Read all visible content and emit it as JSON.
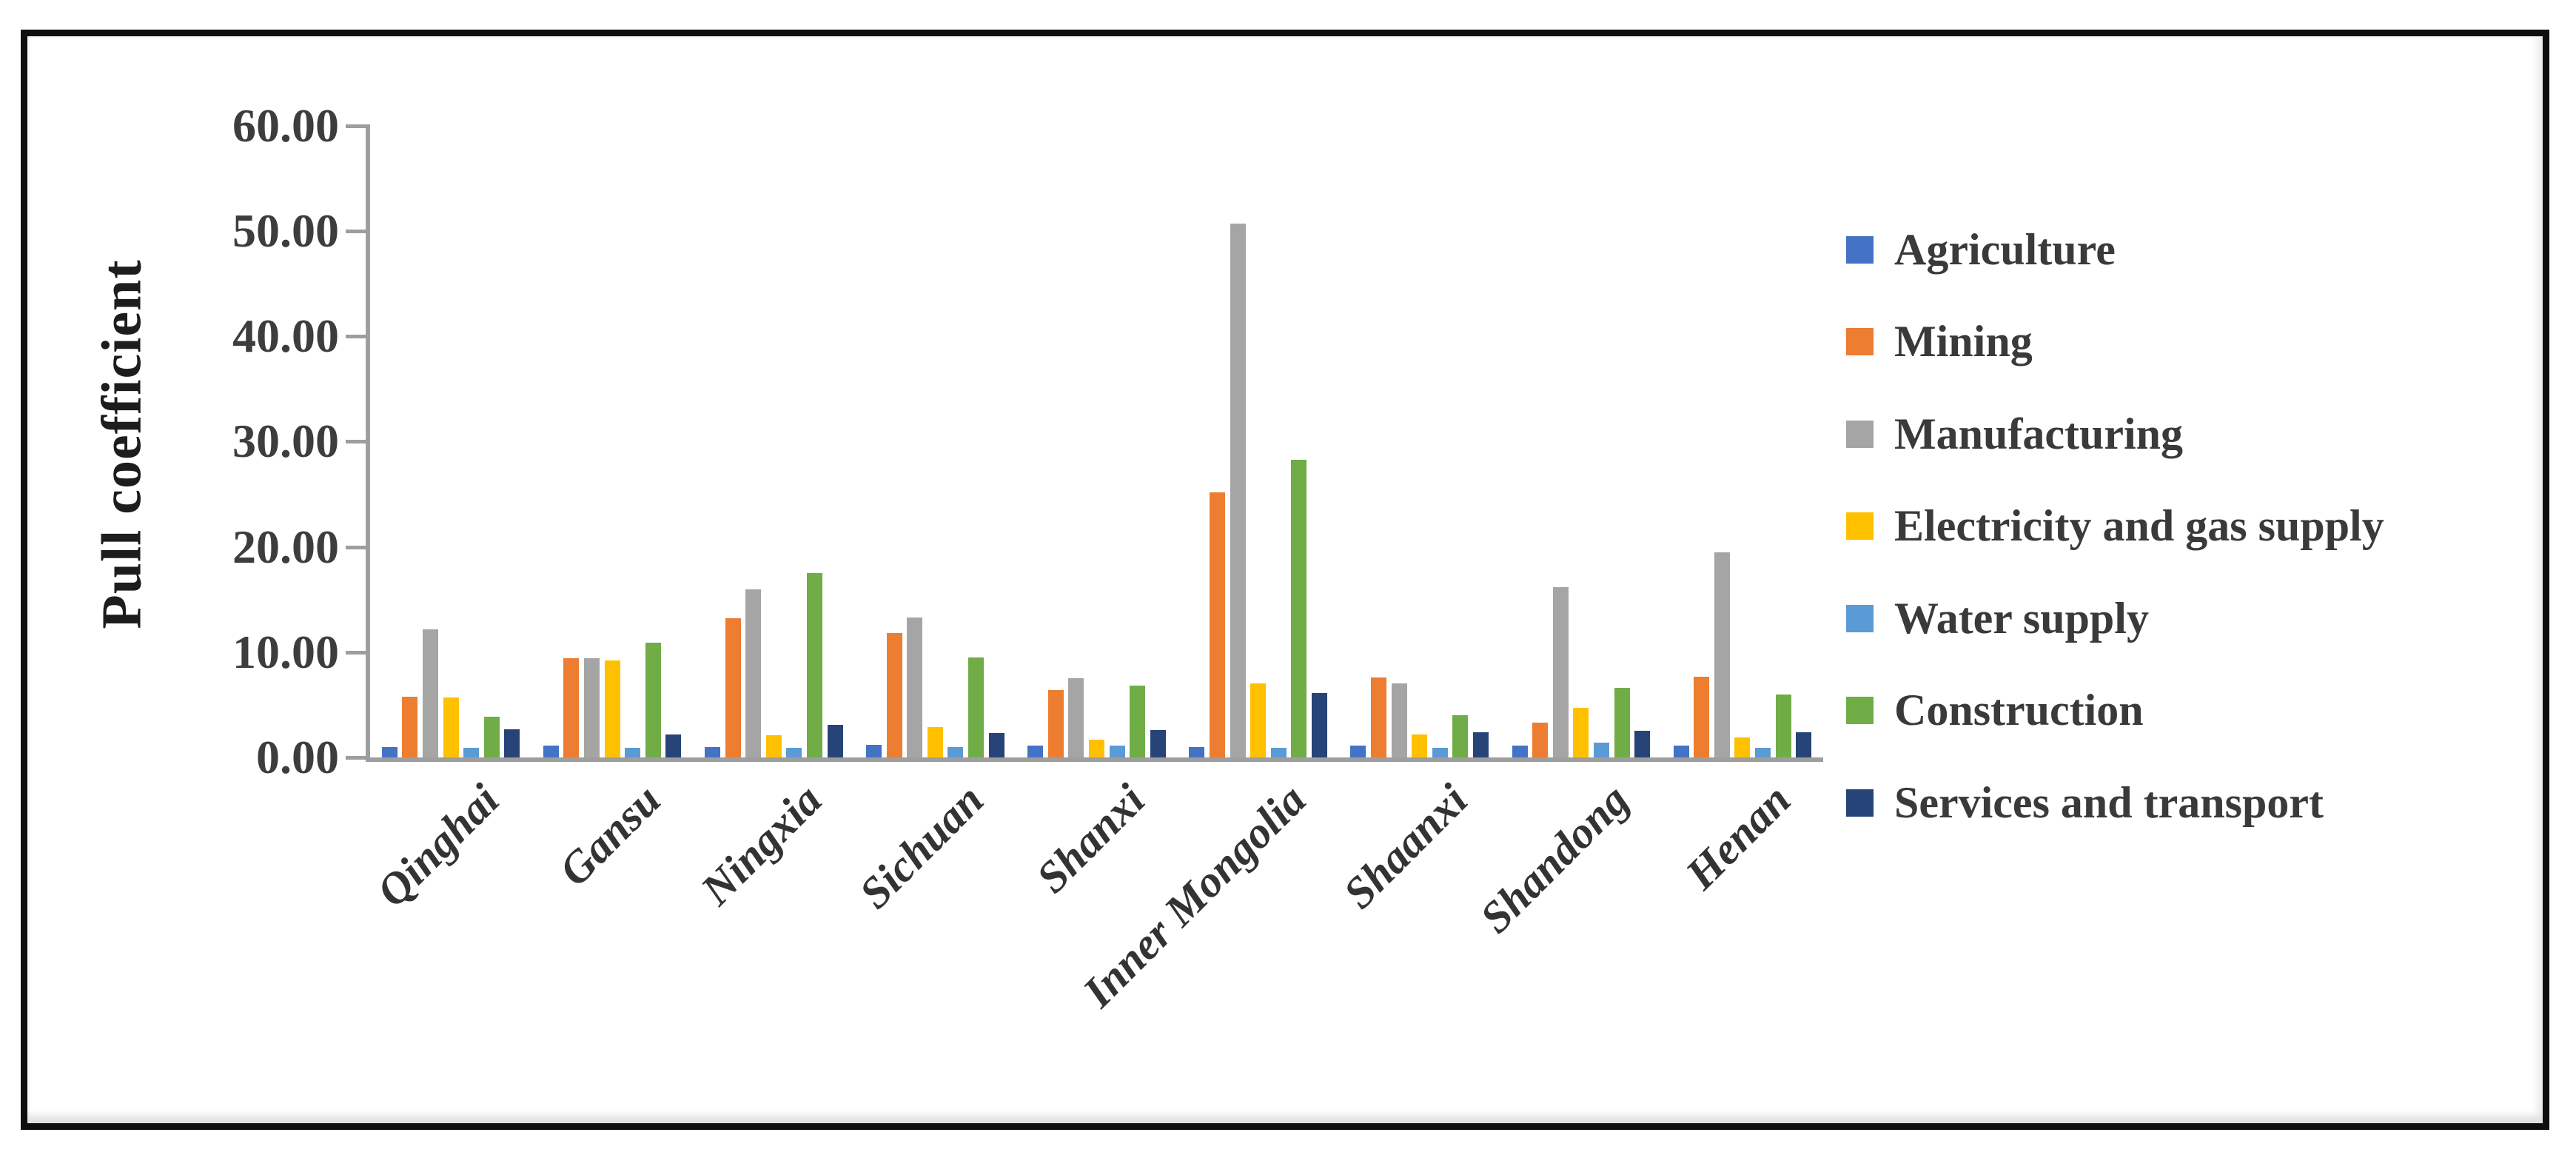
{
  "figure": {
    "y_axis_title": "Pull coefficient"
  },
  "chart_data": {
    "type": "bar",
    "title": "",
    "xlabel": "",
    "ylabel": "Pull coefficient",
    "ylim": [
      0,
      60
    ],
    "ytick_step": 10,
    "ytick_labels": [
      "0.00",
      "10.00",
      "20.00",
      "30.00",
      "40.00",
      "50.00",
      "60.00"
    ],
    "grid": false,
    "legend_position": "right",
    "categories": [
      "Qinghai",
      "Gansu",
      "Ningxia",
      "Sichuan",
      "Shanxi",
      "Inner Mongolia",
      "Shaanxi",
      "Shandong",
      "Henan"
    ],
    "series": [
      {
        "name": "Agriculture",
        "color": "#4472C4",
        "values": [
          1.0,
          1.1,
          1.0,
          1.2,
          1.1,
          1.0,
          1.1,
          1.1,
          1.1
        ]
      },
      {
        "name": "Mining",
        "color": "#ED7D31",
        "values": [
          5.8,
          9.4,
          13.2,
          11.8,
          6.4,
          25.2,
          7.6,
          3.3,
          7.7
        ]
      },
      {
        "name": "Manufacturing",
        "color": "#A5A5A5",
        "values": [
          12.2,
          9.4,
          16.0,
          13.3,
          7.5,
          50.7,
          7.0,
          16.2,
          19.5
        ]
      },
      {
        "name": "Electricity and gas supply",
        "color": "#FFC000",
        "values": [
          5.7,
          9.2,
          2.1,
          2.9,
          1.7,
          7.0,
          2.2,
          4.7,
          1.9
        ]
      },
      {
        "name": "Water supply",
        "color": "#5B9BD5",
        "values": [
          0.9,
          0.9,
          0.9,
          1.0,
          1.1,
          0.9,
          0.9,
          1.4,
          0.9
        ]
      },
      {
        "name": "Construction",
        "color": "#70AD47",
        "values": [
          3.9,
          10.9,
          17.5,
          9.5,
          6.8,
          28.3,
          4.0,
          6.6,
          6.0
        ]
      },
      {
        "name": "Services and transport",
        "color": "#264478",
        "values": [
          2.7,
          2.2,
          3.1,
          2.3,
          2.6,
          6.1,
          2.4,
          2.5,
          2.4
        ]
      }
    ]
  },
  "style": {
    "axis_color": "#9e9e9e",
    "text_color": "#3d3d3d",
    "frame_color": "#0e0e0e"
  }
}
